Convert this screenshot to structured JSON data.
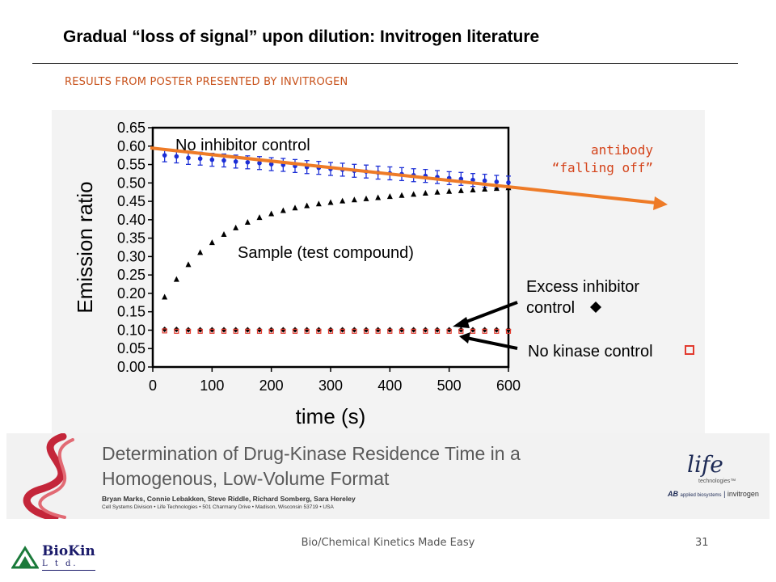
{
  "slide": {
    "title": "Gradual “loss of signal” upon dilution: Invitrogen literature",
    "subtitle": "RESULTS FROM POSTER PRESENTED BY INVITROGEN",
    "annotation_line1": "antibody",
    "annotation_line2": "“falling off”",
    "footer": "Bio/Chemical Kinetics Made Easy",
    "page_number": "31",
    "accent_color": "#ee7b27",
    "logo_name": "BioKin",
    "logo_ltd": "L t d."
  },
  "poster": {
    "title_line1": "Determination of Drug-Kinase Residence Time in a",
    "title_line2": "Homogenous, Low-Volume Format",
    "authors": "Bryan Marks, Connie Lebakken, Steve Riddle, Richard Somberg, Sara Hereley",
    "affiliation": "Cell Systems Division • Life Technologies • 501 Charmany Drive • Madison, Wisconsin 53719 • USA",
    "logo_life": "life",
    "logo_life_sub": "technologies™",
    "logo_ab": "AB",
    "logo_applied": "applied biosystems",
    "logo_invitrogen": "invitrogen"
  },
  "chart_data": {
    "type": "scatter",
    "xlabel": "time (s)",
    "ylabel": "Emission ratio",
    "xlim": [
      0,
      600
    ],
    "ylim": [
      0,
      0.65
    ],
    "x_ticks": [
      "0",
      "100",
      "200",
      "300",
      "400",
      "500",
      "600"
    ],
    "y_ticks": [
      "0.00",
      "0.05",
      "0.10",
      "0.15",
      "0.20",
      "0.25",
      "0.30",
      "0.35",
      "0.40",
      "0.45",
      "0.50",
      "0.55",
      "0.60",
      "0.65"
    ],
    "annotations": {
      "no_inhibitor": "No inhibitor control",
      "sample": "Sample (test compound)",
      "excess_line1": "Excess inhibitor",
      "excess_line2": "control",
      "no_kinase": "No kinase control"
    },
    "series": [
      {
        "name": "No inhibitor control",
        "color": "#1c2fd6",
        "marker": "circle",
        "x": [
          20,
          40,
          60,
          80,
          100,
          120,
          140,
          160,
          180,
          200,
          220,
          240,
          260,
          280,
          300,
          320,
          340,
          360,
          380,
          400,
          420,
          440,
          460,
          480,
          500,
          520,
          540,
          560,
          580,
          600
        ],
        "y": [
          0.575,
          0.572,
          0.568,
          0.566,
          0.563,
          0.561,
          0.558,
          0.556,
          0.554,
          0.551,
          0.549,
          0.546,
          0.543,
          0.541,
          0.538,
          0.536,
          0.533,
          0.531,
          0.528,
          0.526,
          0.524,
          0.521,
          0.519,
          0.516,
          0.513,
          0.511,
          0.508,
          0.506,
          0.503,
          0.501
        ]
      },
      {
        "name": "Sample (test compound)",
        "color": "#000000",
        "marker": "triangle",
        "x": [
          20,
          40,
          60,
          80,
          100,
          120,
          140,
          160,
          180,
          200,
          220,
          240,
          260,
          280,
          300,
          320,
          340,
          360,
          380,
          400,
          420,
          440,
          460,
          480,
          500,
          520,
          540,
          560,
          580,
          600
        ],
        "y": [
          0.19,
          0.238,
          0.278,
          0.311,
          0.338,
          0.36,
          0.378,
          0.393,
          0.406,
          0.416,
          0.425,
          0.432,
          0.438,
          0.443,
          0.447,
          0.451,
          0.454,
          0.457,
          0.46,
          0.463,
          0.466,
          0.469,
          0.472,
          0.475,
          0.477,
          0.479,
          0.481,
          0.483,
          0.485,
          0.487
        ]
      },
      {
        "name": "Excess inhibitor control",
        "color": "#000000",
        "marker": "diamond",
        "x": [
          20,
          40,
          60,
          80,
          100,
          120,
          140,
          160,
          180,
          200,
          220,
          240,
          260,
          280,
          300,
          320,
          340,
          360,
          380,
          400,
          420,
          440,
          460,
          480,
          500,
          520,
          540,
          560,
          580,
          600
        ],
        "y": [
          0.102,
          0.102,
          0.101,
          0.101,
          0.101,
          0.101,
          0.101,
          0.101,
          0.101,
          0.101,
          0.101,
          0.101,
          0.101,
          0.101,
          0.101,
          0.101,
          0.101,
          0.101,
          0.101,
          0.101,
          0.101,
          0.101,
          0.101,
          0.101,
          0.101,
          0.101,
          0.101,
          0.101,
          0.101,
          0.101
        ]
      },
      {
        "name": "No kinase control",
        "color": "#e23a2e",
        "marker": "square-open",
        "x": [
          20,
          40,
          60,
          80,
          100,
          120,
          140,
          160,
          180,
          200,
          220,
          240,
          260,
          280,
          300,
          320,
          340,
          360,
          380,
          400,
          420,
          440,
          460,
          480,
          500,
          520,
          540,
          560,
          580,
          600
        ],
        "y": [
          0.098,
          0.097,
          0.097,
          0.097,
          0.097,
          0.097,
          0.097,
          0.097,
          0.097,
          0.097,
          0.097,
          0.097,
          0.097,
          0.097,
          0.097,
          0.097,
          0.097,
          0.097,
          0.097,
          0.097,
          0.097,
          0.097,
          0.097,
          0.097,
          0.097,
          0.097,
          0.097,
          0.097,
          0.097,
          0.097
        ]
      }
    ],
    "trend_arrow": {
      "x": [
        0,
        600
      ],
      "y": [
        0.595,
        0.495
      ],
      "color": "#ee7b27"
    }
  }
}
